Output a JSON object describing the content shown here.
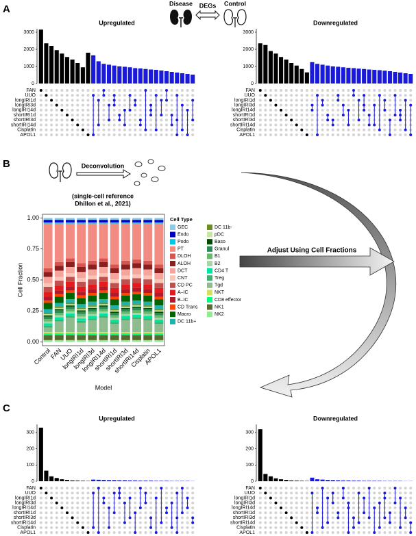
{
  "figure": {
    "panel_a": "A",
    "panel_b": "B",
    "panel_c": "C",
    "disease": "Disease",
    "degs": "DEGs",
    "control": "Control",
    "deconvolution": "Deconvolution",
    "reference_line1": "(single-cell reference",
    "reference_line2": "Dhillon et al., 2021)",
    "adjust": "Adjust Using Cell Fractions"
  },
  "chart_data": [
    {
      "type": "upset",
      "title": "Upregulated",
      "color": "#1a1adb",
      "singleton_color": "#000000",
      "sets": [
        "FAN",
        "UUO",
        "longIRI1d",
        "longIRI3d",
        "longIRI14d",
        "shortIRI1d",
        "shortIRI3d",
        "shortIRI14d",
        "Cisplatin",
        "APOL1"
      ],
      "values": [
        3150,
        2350,
        2200,
        1950,
        1750,
        1550,
        1400,
        1200,
        950,
        1800,
        1650,
        1300,
        1150,
        1100,
        1050,
        1000,
        980,
        950,
        900,
        880,
        850,
        820,
        800,
        760,
        720,
        680,
        640,
        600,
        560,
        520
      ],
      "combos": [
        [
          0
        ],
        [
          1
        ],
        [
          2
        ],
        [
          3
        ],
        [
          4
        ],
        [
          5
        ],
        [
          6
        ],
        [
          7
        ],
        [
          8
        ],
        [
          9
        ],
        [
          1,
          9
        ],
        [
          2,
          7
        ],
        [
          0,
          1
        ],
        [
          3,
          6
        ],
        [
          1,
          2,
          3
        ],
        [
          5,
          6
        ],
        [
          4,
          7
        ],
        [
          1,
          4
        ],
        [
          2,
          3
        ],
        [
          6,
          7
        ],
        [
          0,
          8
        ],
        [
          3,
          4,
          5
        ],
        [
          1,
          8
        ],
        [
          2,
          5
        ],
        [
          0,
          2
        ],
        [
          5,
          7
        ],
        [
          1,
          6,
          9
        ],
        [
          3,
          8
        ],
        [
          4,
          9
        ],
        [
          2,
          6
        ]
      ],
      "ylim": [
        0,
        3200
      ],
      "yticks": [
        0,
        1000,
        2000,
        3000
      ]
    },
    {
      "type": "upset",
      "title": "Downregulated",
      "color": "#1a1adb",
      "singleton_color": "#000000",
      "sets": [
        "FAN",
        "UUO",
        "longIRI1d",
        "longIRI3d",
        "longIRI14d",
        "shortIRI1d",
        "shortIRI3d",
        "shortIRI14d",
        "Cisplatin",
        "APOL1"
      ],
      "values": [
        2350,
        2250,
        1900,
        1750,
        1550,
        1400,
        1200,
        1050,
        850,
        650,
        1250,
        1150,
        1100,
        1050,
        1000,
        980,
        950,
        920,
        900,
        870,
        850,
        820,
        800,
        780,
        750,
        720,
        680,
        640,
        600,
        560
      ],
      "combos": [
        [
          0
        ],
        [
          1
        ],
        [
          2
        ],
        [
          3
        ],
        [
          4
        ],
        [
          5
        ],
        [
          6
        ],
        [
          7
        ],
        [
          8
        ],
        [
          9
        ],
        [
          3,
          4
        ],
        [
          1,
          9
        ],
        [
          2,
          3
        ],
        [
          5,
          6
        ],
        [
          6,
          7
        ],
        [
          1,
          2
        ],
        [
          3,
          5
        ],
        [
          4,
          7
        ],
        [
          0,
          1
        ],
        [
          2,
          6
        ],
        [
          1,
          3,
          4
        ],
        [
          5,
          7
        ],
        [
          3,
          7
        ],
        [
          1,
          8
        ],
        [
          2,
          4
        ],
        [
          6,
          9
        ],
        [
          1,
          5
        ],
        [
          4,
          5,
          6
        ],
        [
          2,
          8
        ],
        [
          3,
          9
        ]
      ],
      "ylim": [
        0,
        3200
      ],
      "yticks": [
        0,
        1000,
        2000,
        3000
      ]
    },
    {
      "type": "stacked_bar",
      "y_label": "Cell Fraction",
      "x_label": "Model",
      "legend_title": "Cell Type",
      "categories": [
        "Control",
        "FAN",
        "UUO",
        "longIRI1d",
        "longIRI3d",
        "longIRI14d",
        "shortIRI1d",
        "shortIRI3d",
        "shortIRI14d",
        "Cisplatin",
        "APOL1"
      ],
      "ylim": [
        -0.03,
        1.03
      ],
      "yticks": [
        {
          "value": 0,
          "label": "0.00"
        },
        {
          "value": 0.25,
          "label": "0.25"
        },
        {
          "value": 0.5,
          "label": "0.50"
        },
        {
          "value": 0.75,
          "label": "0.75"
        },
        {
          "value": 1,
          "label": "1.00"
        }
      ],
      "series": [
        {
          "name": "GEC",
          "color": "#8ecae6",
          "values": [
            0.015,
            0.015,
            0.015,
            0.015,
            0.015,
            0.015,
            0.015,
            0.015,
            0.015,
            0.015,
            0.015
          ]
        },
        {
          "name": "Endo",
          "color": "#0000cd",
          "values": [
            0.02,
            0.02,
            0.02,
            0.02,
            0.02,
            0.02,
            0.02,
            0.02,
            0.02,
            0.02,
            0.02
          ]
        },
        {
          "name": "Podo",
          "color": "#00c5e5",
          "values": [
            0.01,
            0.01,
            0.01,
            0.01,
            0.01,
            0.01,
            0.01,
            0.01,
            0.01,
            0.01,
            0.01
          ]
        },
        {
          "name": "PT",
          "color": "#f28b82",
          "values": [
            0.36,
            0.31,
            0.28,
            0.32,
            0.3,
            0.28,
            0.33,
            0.3,
            0.29,
            0.3,
            0.33
          ]
        },
        {
          "name": "DLOH",
          "color": "#d9534f",
          "values": [
            0.03,
            0.03,
            0.03,
            0.03,
            0.03,
            0.03,
            0.03,
            0.03,
            0.03,
            0.03,
            0.03
          ]
        },
        {
          "name": "ALOH",
          "color": "#8b1e1e",
          "values": [
            0.04,
            0.04,
            0.04,
            0.04,
            0.04,
            0.04,
            0.04,
            0.04,
            0.04,
            0.04,
            0.04
          ]
        },
        {
          "name": "DCT",
          "color": "#f5a59b",
          "values": [
            0.05,
            0.05,
            0.05,
            0.05,
            0.05,
            0.05,
            0.05,
            0.05,
            0.05,
            0.05,
            0.05
          ]
        },
        {
          "name": "CNT",
          "color": "#fbc4b8",
          "values": [
            0.03,
            0.03,
            0.03,
            0.03,
            0.03,
            0.03,
            0.03,
            0.03,
            0.03,
            0.03,
            0.03
          ]
        },
        {
          "name": "CD PC",
          "color": "#c0504d",
          "values": [
            0.04,
            0.04,
            0.04,
            0.04,
            0.04,
            0.04,
            0.04,
            0.04,
            0.04,
            0.04,
            0.04
          ]
        },
        {
          "name": "A–IC",
          "color": "#e41a1c",
          "values": [
            0.04,
            0.04,
            0.04,
            0.04,
            0.04,
            0.04,
            0.04,
            0.04,
            0.04,
            0.04,
            0.04
          ]
        },
        {
          "name": "B–IC",
          "color": "#b2182b",
          "values": [
            0.03,
            0.03,
            0.03,
            0.03,
            0.03,
            0.03,
            0.03,
            0.03,
            0.03,
            0.03,
            0.03
          ]
        },
        {
          "name": "CD Trans",
          "color": "#ff4500",
          "values": [
            0.02,
            0.02,
            0.02,
            0.02,
            0.02,
            0.02,
            0.02,
            0.02,
            0.02,
            0.02,
            0.02
          ]
        },
        {
          "name": "Macro",
          "color": "#006400",
          "values": [
            0.05,
            0.05,
            0.05,
            0.05,
            0.05,
            0.05,
            0.05,
            0.05,
            0.05,
            0.05,
            0.05
          ]
        },
        {
          "name": "DC 11b+",
          "color": "#20b2aa",
          "values": [
            0.03,
            0.03,
            0.03,
            0.03,
            0.03,
            0.03,
            0.03,
            0.03,
            0.03,
            0.03,
            0.03
          ]
        },
        {
          "name": "DC 11b-",
          "color": "#6b8e23",
          "values": [
            0.01,
            0.01,
            0.01,
            0.01,
            0.01,
            0.01,
            0.01,
            0.01,
            0.01,
            0.01,
            0.01
          ]
        },
        {
          "name": "pDC",
          "color": "#c6e6a0",
          "values": [
            0.01,
            0.01,
            0.01,
            0.01,
            0.01,
            0.01,
            0.01,
            0.01,
            0.01,
            0.01,
            0.01
          ]
        },
        {
          "name": "Baso",
          "color": "#004d00",
          "values": [
            0.01,
            0.01,
            0.01,
            0.01,
            0.01,
            0.01,
            0.01,
            0.01,
            0.01,
            0.01,
            0.01
          ]
        },
        {
          "name": "Granul",
          "color": "#2e8b57",
          "values": [
            0.02,
            0.02,
            0.02,
            0.02,
            0.02,
            0.02,
            0.02,
            0.02,
            0.02,
            0.02,
            0.02
          ]
        },
        {
          "name": "B1",
          "color": "#66bb6a",
          "values": [
            0.02,
            0.02,
            0.02,
            0.02,
            0.02,
            0.02,
            0.02,
            0.02,
            0.02,
            0.02,
            0.02
          ]
        },
        {
          "name": "B2",
          "color": "#a5d6a7",
          "values": [
            0.015,
            0.015,
            0.015,
            0.015,
            0.015,
            0.015,
            0.015,
            0.015,
            0.015,
            0.015,
            0.015
          ]
        },
        {
          "name": "CD4 T",
          "color": "#00e5a0",
          "values": [
            0.02,
            0.02,
            0.02,
            0.02,
            0.02,
            0.02,
            0.02,
            0.02,
            0.02,
            0.02,
            0.02
          ]
        },
        {
          "name": "Treg",
          "color": "#3cb371",
          "values": [
            0.015,
            0.015,
            0.015,
            0.015,
            0.015,
            0.015,
            0.015,
            0.015,
            0.015,
            0.015,
            0.015
          ]
        },
        {
          "name": "Tgd",
          "color": "#8fbc8f",
          "values": [
            0.035,
            0.085,
            0.115,
            0.075,
            0.095,
            0.115,
            0.065,
            0.095,
            0.105,
            0.095,
            0.065
          ]
        },
        {
          "name": "NKT",
          "color": "#d4e157",
          "values": [
            0.01,
            0.01,
            0.01,
            0.01,
            0.01,
            0.01,
            0.01,
            0.01,
            0.01,
            0.01,
            0.01
          ]
        },
        {
          "name": "CD8 effector",
          "color": "#00ff7f",
          "values": [
            0.015,
            0.015,
            0.015,
            0.015,
            0.015,
            0.015,
            0.015,
            0.015,
            0.015,
            0.015,
            0.015
          ]
        },
        {
          "name": "NK1",
          "color": "#556b2f",
          "values": [
            0.04,
            0.04,
            0.04,
            0.04,
            0.04,
            0.04,
            0.04,
            0.04,
            0.04,
            0.04,
            0.04
          ]
        },
        {
          "name": "NK2",
          "color": "#90ee90",
          "values": [
            0.015,
            0.015,
            0.015,
            0.015,
            0.015,
            0.015,
            0.015,
            0.015,
            0.015,
            0.015,
            0.015
          ]
        }
      ]
    },
    {
      "type": "upset",
      "title": "Upregulated",
      "color": "#1a1adb",
      "singleton_color": "#000000",
      "sets": [
        "FAN",
        "UUO",
        "longIRI1d",
        "longIRI3d",
        "longIRI14d",
        "shortIRI1d",
        "shortIRI3d",
        "shortIRI14d",
        "Cisplatin",
        "APOL1"
      ],
      "values": [
        330,
        65,
        30,
        20,
        12,
        8,
        5,
        4,
        3,
        2,
        10,
        9,
        8,
        7,
        7,
        6,
        6,
        5,
        5,
        4,
        4,
        4,
        3,
        3,
        3,
        2,
        2,
        2,
        2,
        1
      ],
      "combos": [
        [
          0
        ],
        [
          1
        ],
        [
          2
        ],
        [
          3
        ],
        [
          4
        ],
        [
          5
        ],
        [
          6
        ],
        [
          7
        ],
        [
          8
        ],
        [
          9
        ],
        [
          1,
          8
        ],
        [
          0,
          9
        ],
        [
          2,
          3
        ],
        [
          4,
          8
        ],
        [
          1,
          5
        ],
        [
          0,
          1,
          2
        ],
        [
          3,
          7
        ],
        [
          2,
          6
        ],
        [
          5,
          9
        ],
        [
          0,
          4
        ],
        [
          1,
          3
        ],
        [
          6,
          8
        ],
        [
          2,
          9
        ],
        [
          0,
          7
        ],
        [
          4,
          5
        ],
        [
          3,
          8
        ],
        [
          1,
          6,
          9
        ],
        [
          0,
          5
        ],
        [
          2,
          4
        ],
        [
          6,
          7
        ]
      ],
      "ylim": [
        0,
        350
      ],
      "yticks": [
        0,
        100,
        200,
        300
      ]
    },
    {
      "type": "upset",
      "title": "Downregulated",
      "color": "#1a1adb",
      "singleton_color": "#000000",
      "sets": [
        "FAN",
        "UUO",
        "longIRI1d",
        "longIRI3d",
        "longIRI14d",
        "shortIRI1d",
        "shortIRI3d",
        "shortIRI14d",
        "Cisplatin",
        "APOL1"
      ],
      "values": [
        320,
        45,
        30,
        18,
        12,
        8,
        5,
        4,
        3,
        2,
        22,
        12,
        10,
        8,
        7,
        6,
        5,
        5,
        4,
        4,
        3,
        3,
        3,
        3,
        2,
        2,
        2,
        2,
        1,
        1
      ],
      "combos": [
        [
          0
        ],
        [
          1
        ],
        [
          2
        ],
        [
          3
        ],
        [
          4
        ],
        [
          5
        ],
        [
          6
        ],
        [
          7
        ],
        [
          8
        ],
        [
          9
        ],
        [
          1,
          9
        ],
        [
          4,
          5
        ],
        [
          0,
          8
        ],
        [
          2,
          7
        ],
        [
          1,
          3
        ],
        [
          5,
          6
        ],
        [
          0,
          2
        ],
        [
          3,
          4,
          9
        ],
        [
          6,
          8
        ],
        [
          1,
          7
        ],
        [
          2,
          5
        ],
        [
          0,
          6
        ],
        [
          4,
          9
        ],
        [
          3,
          8
        ],
        [
          1,
          2,
          6
        ],
        [
          5,
          7
        ],
        [
          0,
          3
        ],
        [
          2,
          8
        ],
        [
          4,
          6
        ],
        [
          7,
          9
        ]
      ],
      "ylim": [
        0,
        350
      ],
      "yticks": [
        0,
        100,
        200,
        300
      ]
    }
  ]
}
